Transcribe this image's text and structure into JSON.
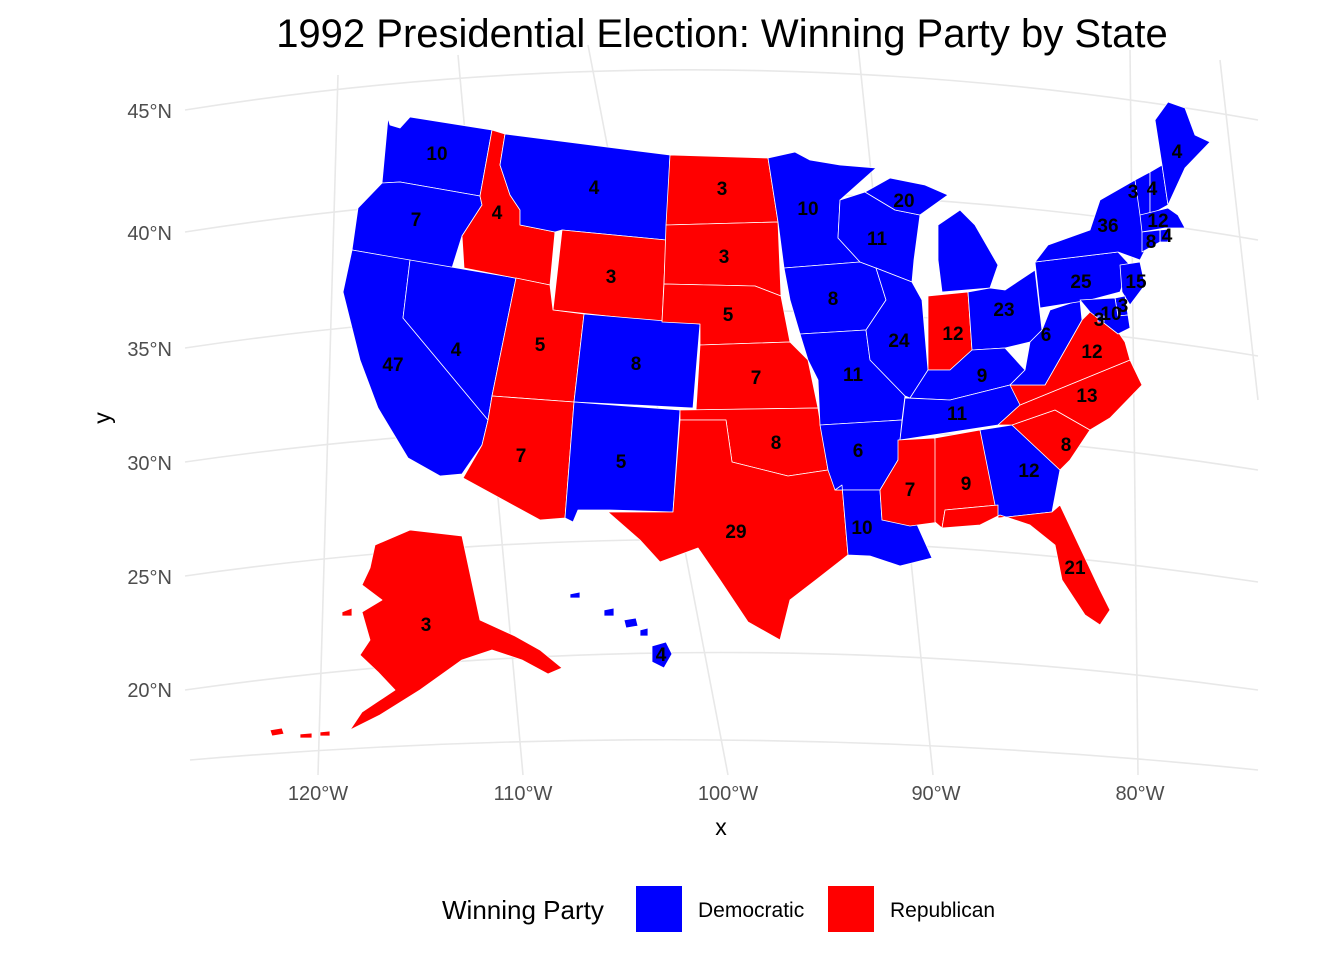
{
  "title": "1992 Presidential Election: Winning Party by State",
  "axes": {
    "x_title": "x",
    "y_title": "y",
    "x_ticks": [
      "120°W",
      "110°W",
      "100°W",
      "90°W",
      "80°W"
    ],
    "y_ticks": [
      "45°N",
      "40°N",
      "35°N",
      "30°N",
      "25°N",
      "20°N"
    ]
  },
  "legend": {
    "title": "Winning Party",
    "position": "bottom",
    "items": [
      {
        "label": "Democratic",
        "color": "#0000ff"
      },
      {
        "label": "Republican",
        "color": "#ff0000"
      }
    ]
  },
  "colors": {
    "democratic": "#0000ff",
    "republican": "#ff0000",
    "border": "#ffffff"
  },
  "states": [
    {
      "name": "Washington",
      "party": "Democratic",
      "ev": "10"
    },
    {
      "name": "Oregon",
      "party": "Democratic",
      "ev": "7"
    },
    {
      "name": "California",
      "party": "Democratic",
      "ev": "47"
    },
    {
      "name": "Nevada",
      "party": "Democratic",
      "ev": "4"
    },
    {
      "name": "Idaho",
      "party": "Republican",
      "ev": "4"
    },
    {
      "name": "Montana",
      "party": "Democratic",
      "ev": "4"
    },
    {
      "name": "Wyoming",
      "party": "Republican",
      "ev": "3"
    },
    {
      "name": "Utah",
      "party": "Republican",
      "ev": "5"
    },
    {
      "name": "Colorado",
      "party": "Democratic",
      "ev": "8"
    },
    {
      "name": "Arizona",
      "party": "Republican",
      "ev": "7"
    },
    {
      "name": "New Mexico",
      "party": "Democratic",
      "ev": "5"
    },
    {
      "name": "North Dakota",
      "party": "Republican",
      "ev": "3"
    },
    {
      "name": "South Dakota",
      "party": "Republican",
      "ev": "3"
    },
    {
      "name": "Nebraska",
      "party": "Republican",
      "ev": "5"
    },
    {
      "name": "Kansas",
      "party": "Republican",
      "ev": "7"
    },
    {
      "name": "Oklahoma",
      "party": "Republican",
      "ev": "8"
    },
    {
      "name": "Texas",
      "party": "Republican",
      "ev": "29"
    },
    {
      "name": "Minnesota",
      "party": "Democratic",
      "ev": "10"
    },
    {
      "name": "Iowa",
      "party": "Democratic",
      "ev": "8"
    },
    {
      "name": "Missouri",
      "party": "Democratic",
      "ev": "11"
    },
    {
      "name": "Arkansas",
      "party": "Democratic",
      "ev": "6"
    },
    {
      "name": "Louisiana",
      "party": "Democratic",
      "ev": "10"
    },
    {
      "name": "Wisconsin",
      "party": "Democratic",
      "ev": "11"
    },
    {
      "name": "Illinois",
      "party": "Democratic",
      "ev": "24"
    },
    {
      "name": "Michigan",
      "party": "Democratic",
      "ev": "20"
    },
    {
      "name": "Indiana",
      "party": "Republican",
      "ev": "12"
    },
    {
      "name": "Ohio",
      "party": "Democratic",
      "ev": "23"
    },
    {
      "name": "Kentucky",
      "party": "Democratic",
      "ev": "9"
    },
    {
      "name": "Tennessee",
      "party": "Democratic",
      "ev": "11"
    },
    {
      "name": "Mississippi",
      "party": "Republican",
      "ev": "7"
    },
    {
      "name": "Alabama",
      "party": "Republican",
      "ev": "9"
    },
    {
      "name": "Georgia",
      "party": "Democratic",
      "ev": "12"
    },
    {
      "name": "Florida",
      "party": "Republican",
      "ev": "21"
    },
    {
      "name": "South Carolina",
      "party": "Republican",
      "ev": "8"
    },
    {
      "name": "North Carolina",
      "party": "Republican",
      "ev": "13"
    },
    {
      "name": "Virginia",
      "party": "Republican",
      "ev": "12"
    },
    {
      "name": "West Virginia",
      "party": "Democratic",
      "ev": "6"
    },
    {
      "name": "Pennsylvania",
      "party": "Democratic",
      "ev": "25"
    },
    {
      "name": "New York",
      "party": "Democratic",
      "ev": "36"
    },
    {
      "name": "Vermont",
      "party": "Democratic",
      "ev": "3"
    },
    {
      "name": "New Hampshire",
      "party": "Democratic",
      "ev": "4"
    },
    {
      "name": "Maine",
      "party": "Democratic",
      "ev": "4"
    },
    {
      "name": "Massachusetts",
      "party": "Democratic",
      "ev": "12"
    },
    {
      "name": "Rhode Island",
      "party": "Democratic",
      "ev": "4"
    },
    {
      "name": "Connecticut",
      "party": "Democratic",
      "ev": "8"
    },
    {
      "name": "New Jersey",
      "party": "Democratic",
      "ev": "15"
    },
    {
      "name": "Delaware",
      "party": "Democratic",
      "ev": "3"
    },
    {
      "name": "Maryland",
      "party": "Democratic",
      "ev": "10"
    },
    {
      "name": "District of Columbia",
      "party": "Democratic",
      "ev": "3"
    },
    {
      "name": "Alaska",
      "party": "Republican",
      "ev": "3"
    },
    {
      "name": "Hawaii",
      "party": "Democratic",
      "ev": "4"
    }
  ]
}
